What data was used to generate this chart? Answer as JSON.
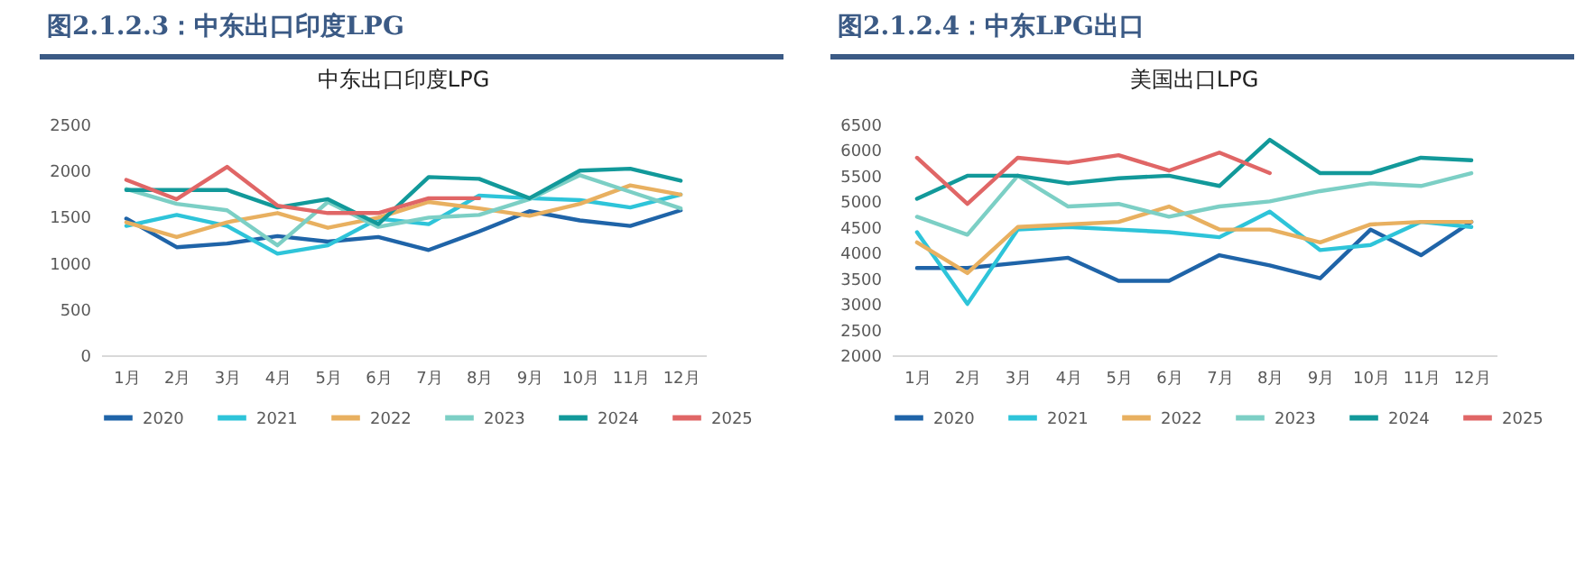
{
  "chart_data": [
    {
      "type": "line",
      "title": "图2.1.2.3：中东出口印度LPG",
      "subtitle": "中东出口印度LPG",
      "categories": [
        "1月",
        "2月",
        "3月",
        "4月",
        "5月",
        "6月",
        "7月",
        "8月",
        "9月",
        "10月",
        "11月",
        "12月"
      ],
      "ylim": [
        0,
        2500
      ],
      "yticks": [
        0,
        500,
        1000,
        1500,
        2000,
        2500
      ],
      "legend": "bottom",
      "series": [
        {
          "name": "2020",
          "color": "#1f64a8",
          "values": [
            1480,
            1170,
            1210,
            1290,
            1230,
            1280,
            1140,
            1340,
            1560,
            1460,
            1400,
            1570
          ]
        },
        {
          "name": "2021",
          "color": "#2ec4d9",
          "values": [
            1400,
            1520,
            1400,
            1100,
            1190,
            1480,
            1420,
            1730,
            1700,
            1680,
            1600,
            1740
          ]
        },
        {
          "name": "2022",
          "color": "#e8b060",
          "values": [
            1440,
            1280,
            1440,
            1540,
            1380,
            1490,
            1660,
            1590,
            1510,
            1640,
            1840,
            1740
          ]
        },
        {
          "name": "2023",
          "color": "#7ccfc5",
          "values": [
            1800,
            1640,
            1570,
            1190,
            1660,
            1390,
            1490,
            1520,
            1690,
            1950,
            1770,
            1590
          ]
        },
        {
          "name": "2024",
          "color": "#12999a",
          "values": [
            1790,
            1790,
            1790,
            1600,
            1690,
            1420,
            1930,
            1910,
            1700,
            2000,
            2020,
            1890
          ]
        },
        {
          "name": "2025",
          "color": "#e06666",
          "values": [
            1900,
            1690,
            2040,
            1620,
            1540,
            1540,
            1700,
            1700,
            null,
            null,
            null,
            null
          ]
        }
      ]
    },
    {
      "type": "line",
      "title": "图2.1.2.4：中东LPG出口",
      "subtitle": "美国出口LPG",
      "categories": [
        "1月",
        "2月",
        "3月",
        "4月",
        "5月",
        "6月",
        "7月",
        "8月",
        "9月",
        "10月",
        "11月",
        "12月"
      ],
      "ylim": [
        2000,
        6500
      ],
      "yticks": [
        2000,
        2500,
        3000,
        3500,
        4000,
        4500,
        5000,
        5500,
        6000,
        6500
      ],
      "legend": "bottom",
      "series": [
        {
          "name": "2020",
          "color": "#1f64a8",
          "values": [
            3700,
            3700,
            3800,
            3900,
            3450,
            3450,
            3950,
            3750,
            3500,
            4450,
            3950,
            4600
          ]
        },
        {
          "name": "2021",
          "color": "#2ec4d9",
          "values": [
            4400,
            3000,
            4450,
            4500,
            4450,
            4400,
            4300,
            4800,
            4050,
            4150,
            4600,
            4500
          ]
        },
        {
          "name": "2022",
          "color": "#e8b060",
          "values": [
            4200,
            3600,
            4500,
            4550,
            4600,
            4900,
            4450,
            4450,
            4200,
            4550,
            4600,
            4600
          ]
        },
        {
          "name": "2023",
          "color": "#7ccfc5",
          "values": [
            4700,
            4350,
            5500,
            4900,
            4950,
            4700,
            4900,
            5000,
            5200,
            5350,
            5300,
            5550
          ]
        },
        {
          "name": "2024",
          "color": "#12999a",
          "values": [
            5050,
            5500,
            5500,
            5350,
            5450,
            5500,
            5300,
            6200,
            5550,
            5550,
            5850,
            5800
          ]
        },
        {
          "name": "2025",
          "color": "#e06666",
          "values": [
            5850,
            4950,
            5850,
            5750,
            5900,
            5600,
            5950,
            5550,
            null,
            null,
            null,
            null
          ]
        }
      ]
    }
  ]
}
